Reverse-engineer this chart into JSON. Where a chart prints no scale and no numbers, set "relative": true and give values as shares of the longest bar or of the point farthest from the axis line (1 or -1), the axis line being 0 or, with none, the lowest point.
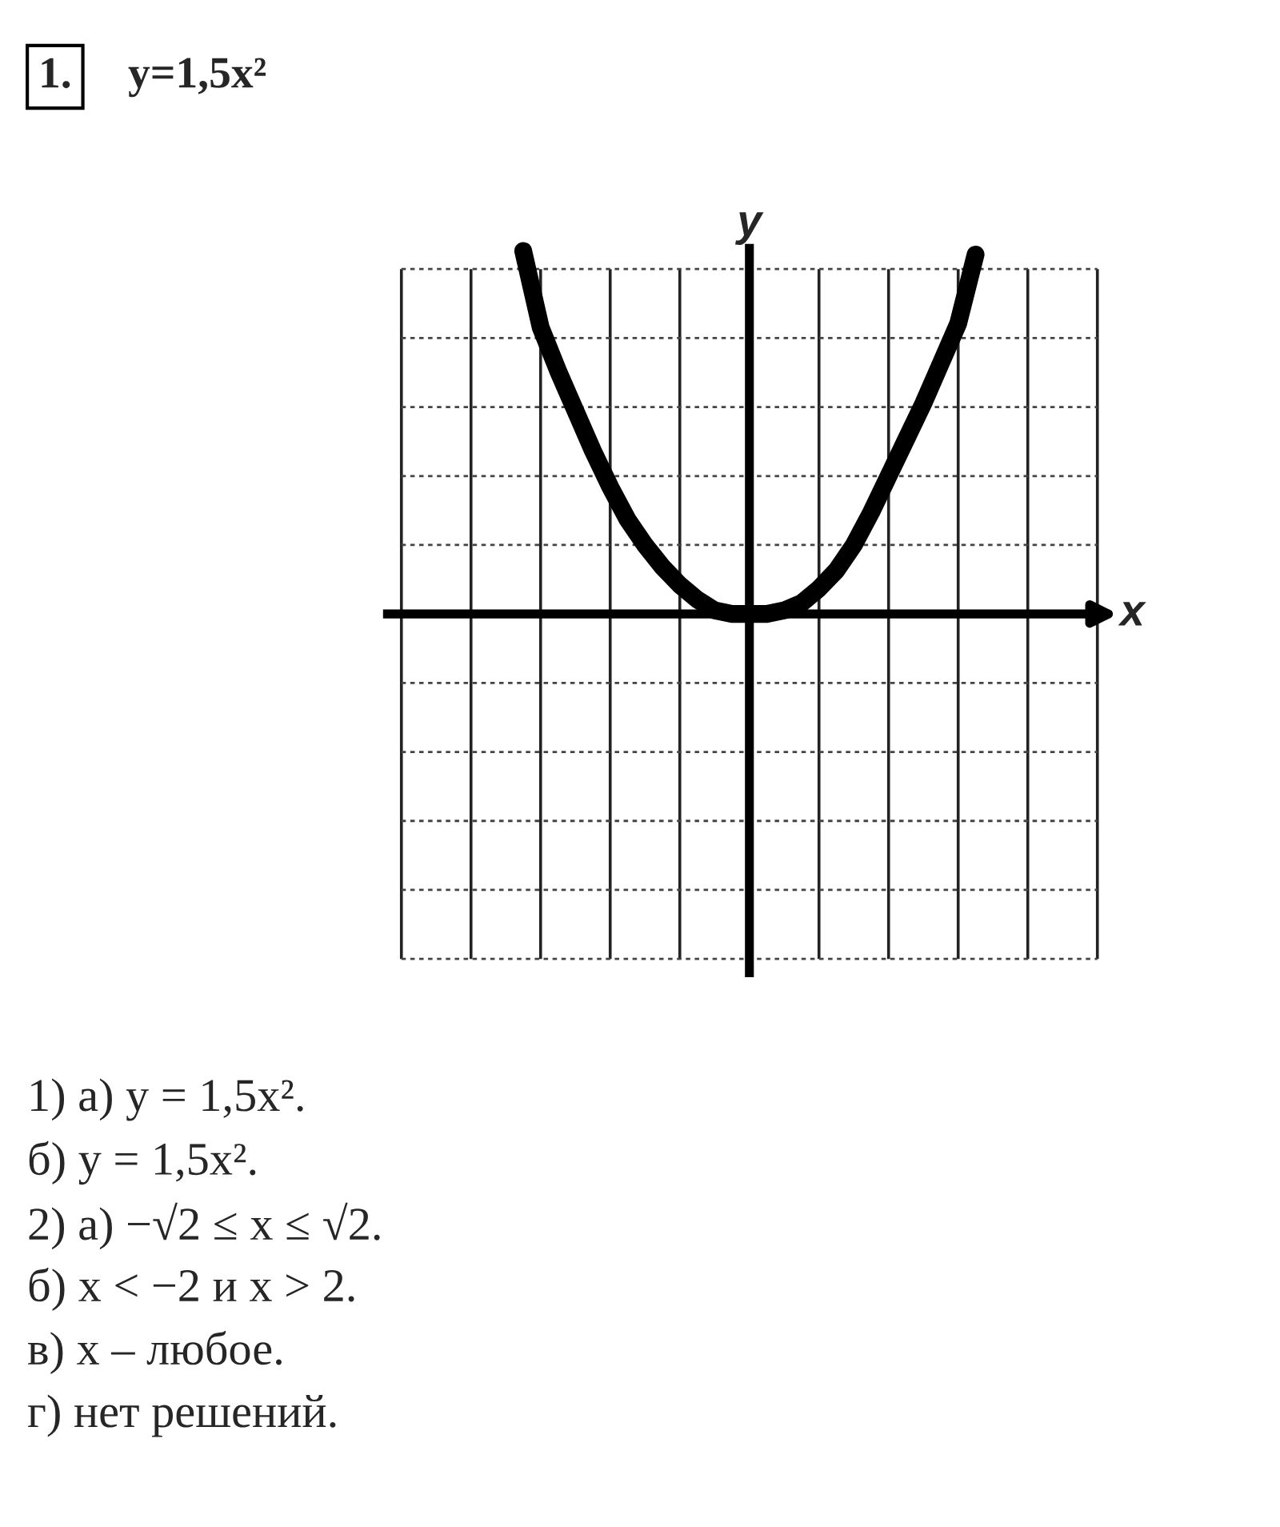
{
  "chart_data": {
    "type": "line",
    "title": "1.",
    "subtitle": "y=1,5x²",
    "xlabel": "x",
    "ylabel": "y",
    "relative": true,
    "grid": true,
    "color": "#000000",
    "categories": [
      null,
      null,
      null,
      null,
      null,
      null,
      null,
      null,
      null,
      null,
      null,
      null,
      null,
      null,
      null,
      null,
      null,
      null,
      null,
      null,
      null,
      null,
      null,
      null,
      null,
      null,
      null,
      null,
      null,
      null,
      null,
      null,
      null,
      null,
      null,
      null,
      null,
      null,
      null,
      null,
      null
    ],
    "values": [
      null,
      null,
      null,
      null,
      null,
      null,
      null,
      1.0,
      0.79,
      0.67,
      0.56,
      0.45,
      0.35,
      0.26,
      0.19,
      0.13,
      0.08,
      0.04,
      0.01,
      0,
      0,
      0,
      0.01,
      0.03,
      0.07,
      0.12,
      0.19,
      0.28,
      0.38,
      0.48,
      0.58,
      0.69,
      0.8,
      0.99,
      null,
      null,
      null,
      null,
      null,
      null,
      null
    ],
    "annotations": [
      "1) а) y = 1,5x².",
      "б) y = 1,5x².",
      "2) а) −√2 ≤ x ≤ √2.",
      "б) x < −2 и x > 2.",
      "в) x – любое.",
      "г) нет решений."
    ]
  }
}
